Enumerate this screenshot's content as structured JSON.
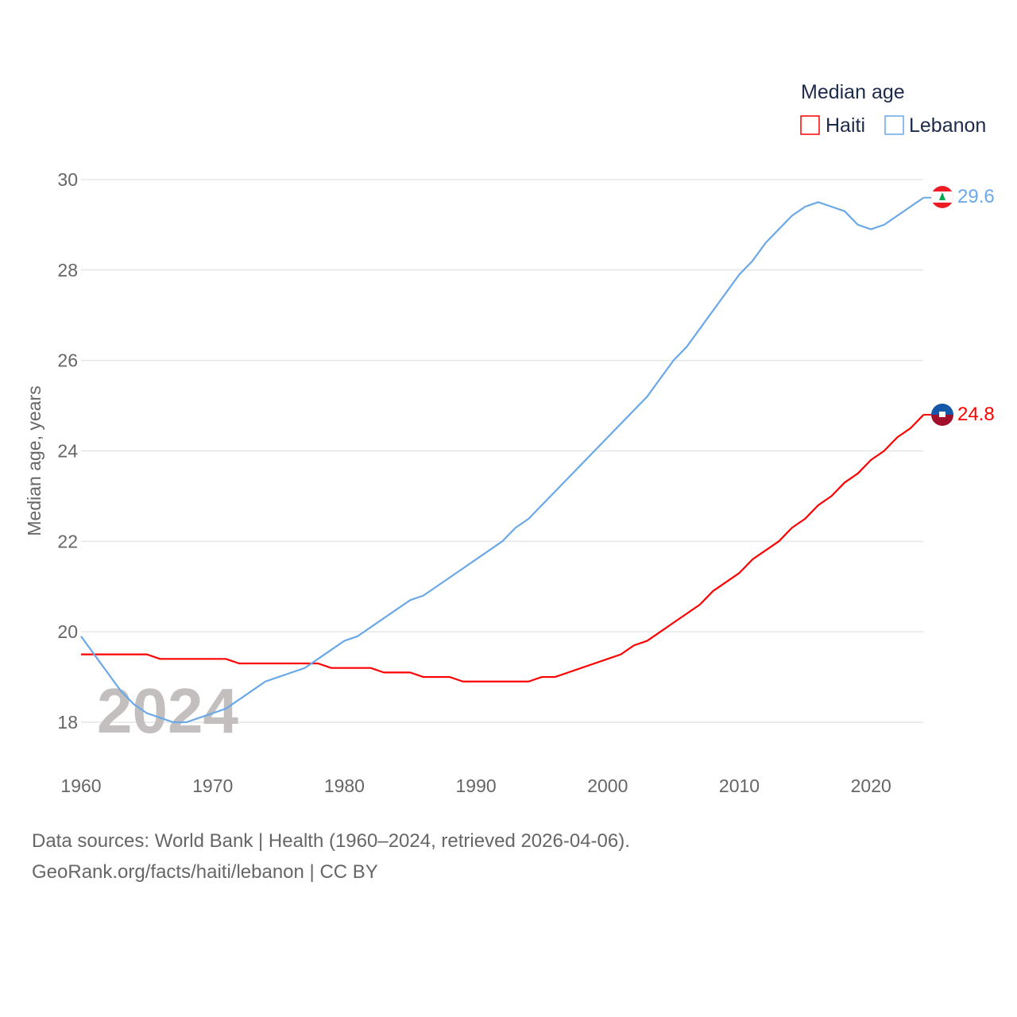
{
  "chart_data": {
    "type": "line",
    "title": "Median age",
    "ylabel": "Median age, years",
    "xlabel": "",
    "xlim": [
      1960,
      2024
    ],
    "ylim": [
      17.5,
      30.3
    ],
    "x_ticks": [
      "1960",
      "1970",
      "1980",
      "1990",
      "2000",
      "2010",
      "2020"
    ],
    "y_ticks": [
      "18",
      "20",
      "22",
      "24",
      "26",
      "28",
      "30"
    ],
    "grid": true,
    "legend_placement": "top-right",
    "year_watermark": "2024",
    "x": [
      1960,
      1961,
      1962,
      1963,
      1964,
      1965,
      1966,
      1967,
      1968,
      1969,
      1970,
      1971,
      1972,
      1973,
      1974,
      1975,
      1976,
      1977,
      1978,
      1979,
      1980,
      1981,
      1982,
      1983,
      1984,
      1985,
      1986,
      1987,
      1988,
      1989,
      1990,
      1991,
      1992,
      1993,
      1994,
      1995,
      1996,
      1997,
      1998,
      1999,
      2000,
      2001,
      2002,
      2003,
      2004,
      2005,
      2006,
      2007,
      2008,
      2009,
      2010,
      2011,
      2012,
      2013,
      2014,
      2015,
      2016,
      2017,
      2018,
      2019,
      2020,
      2021,
      2022,
      2023,
      2024
    ],
    "series": [
      {
        "name": "Haiti",
        "color": "#ff0000",
        "end_label": "24.8",
        "values": [
          19.5,
          19.5,
          19.5,
          19.5,
          19.5,
          19.5,
          19.4,
          19.4,
          19.4,
          19.4,
          19.4,
          19.4,
          19.3,
          19.3,
          19.3,
          19.3,
          19.3,
          19.3,
          19.3,
          19.2,
          19.2,
          19.2,
          19.2,
          19.1,
          19.1,
          19.1,
          19.0,
          19.0,
          19.0,
          18.9,
          18.9,
          18.9,
          18.9,
          18.9,
          18.9,
          19.0,
          19.0,
          19.1,
          19.2,
          19.3,
          19.4,
          19.5,
          19.7,
          19.8,
          20.0,
          20.2,
          20.4,
          20.6,
          20.9,
          21.1,
          21.3,
          21.6,
          21.8,
          22.0,
          22.3,
          22.5,
          22.8,
          23.0,
          23.3,
          23.5,
          23.8,
          24.0,
          24.3,
          24.5,
          24.8
        ]
      },
      {
        "name": "Lebanon",
        "color": "#6aa8e8",
        "end_label": "29.6",
        "values": [
          19.9,
          19.5,
          19.1,
          18.7,
          18.4,
          18.2,
          18.1,
          18.0,
          18.0,
          18.1,
          18.2,
          18.3,
          18.5,
          18.7,
          18.9,
          19.0,
          19.1,
          19.2,
          19.4,
          19.6,
          19.8,
          19.9,
          20.1,
          20.3,
          20.5,
          20.7,
          20.8,
          21.0,
          21.2,
          21.4,
          21.6,
          21.8,
          22.0,
          22.3,
          22.5,
          22.8,
          23.1,
          23.4,
          23.7,
          24.0,
          24.3,
          24.6,
          24.9,
          25.2,
          25.6,
          26.0,
          26.3,
          26.7,
          27.1,
          27.5,
          27.9,
          28.2,
          28.6,
          28.9,
          29.2,
          29.4,
          29.5,
          29.4,
          29.3,
          29.0,
          28.9,
          29.0,
          29.2,
          29.4,
          29.6
        ]
      }
    ]
  },
  "footer": {
    "line1": "Data sources: World Bank | Health (1960–2024, retrieved 2026-04-06).",
    "line2": "GeoRank.org/facts/haiti/lebanon | CC BY"
  }
}
